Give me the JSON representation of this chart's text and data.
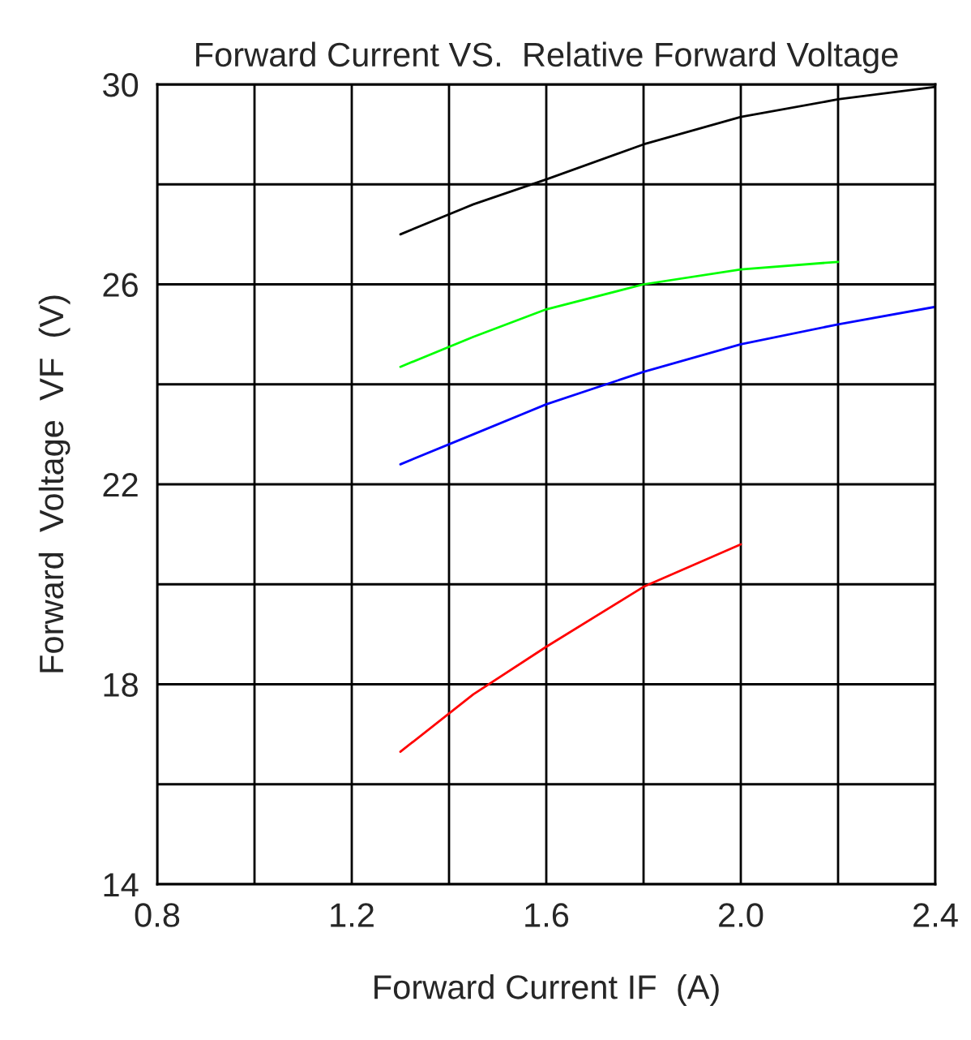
{
  "chart_data": {
    "type": "line",
    "title": "Forward Current VS.  Relative Forward Voltage",
    "xlabel": "Forward Current IF  (A)",
    "ylabel": "Forward  Voltage  VF  (V)",
    "series": [
      {
        "color": "#000000",
        "x": [
          1.3,
          1.45,
          1.6,
          1.8,
          2.0,
          2.2,
          2.4
        ],
        "values": [
          27.0,
          27.6,
          28.1,
          28.8,
          29.35,
          29.7,
          29.95
        ]
      },
      {
        "color": "#00ff00",
        "x": [
          1.3,
          1.45,
          1.6,
          1.8,
          2.0,
          2.2
        ],
        "values": [
          24.35,
          24.95,
          25.5,
          26.0,
          26.3,
          26.45
        ]
      },
      {
        "color": "#0000ff",
        "x": [
          1.3,
          1.45,
          1.6,
          1.8,
          2.0,
          2.2,
          2.4
        ],
        "values": [
          22.4,
          23.0,
          23.6,
          24.25,
          24.8,
          25.2,
          25.55
        ]
      },
      {
        "color": "#ff0000",
        "x": [
          1.3,
          1.45,
          1.6,
          1.8,
          2.0
        ],
        "values": [
          16.65,
          17.8,
          18.75,
          19.95,
          20.8
        ]
      }
    ],
    "xlim": [
      0.8,
      2.4
    ],
    "ylim": [
      14,
      30
    ],
    "xticks": [
      0.8,
      {
        "value": 1.0,
        "label": null
      },
      1.2,
      {
        "value": 1.4,
        "label": null
      },
      1.6,
      {
        "value": 1.8,
        "label": null
      },
      {
        "value": 2.0,
        "label": "2.0"
      },
      {
        "value": 2.2,
        "label": null
      },
      2.4
    ],
    "yticks": [
      14,
      {
        "value": 16,
        "label": null
      },
      18,
      {
        "value": 20,
        "label": null
      },
      22,
      {
        "value": 24,
        "label": null
      },
      26,
      {
        "value": 28,
        "label": null
      },
      30
    ],
    "grid": true,
    "line_style": "solid",
    "marker": "none"
  }
}
